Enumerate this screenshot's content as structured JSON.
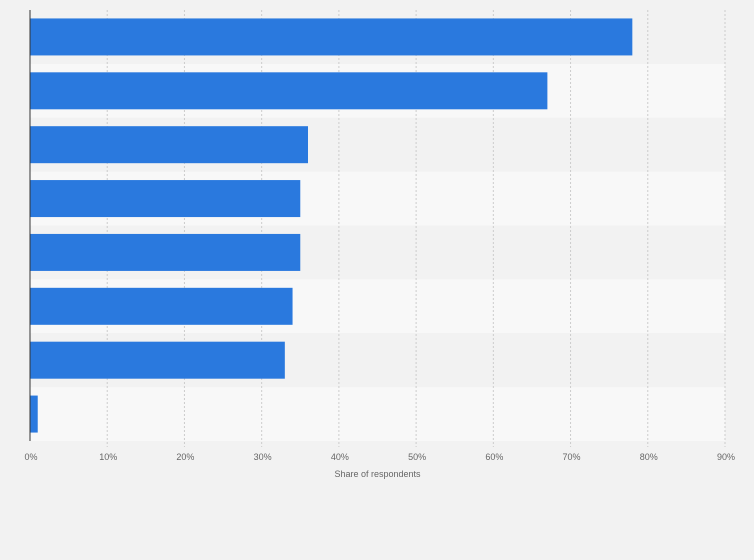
{
  "chart_data": {
    "type": "bar",
    "orientation": "horizontal",
    "categories": [
      "",
      "",
      "",
      "",
      "",
      "",
      "",
      ""
    ],
    "values": [
      78,
      67,
      36,
      35,
      35,
      34,
      33,
      1
    ],
    "xlabel": "Share of respondents",
    "ylabel": "",
    "xlim": [
      0,
      90
    ],
    "xticks": [
      0,
      10,
      20,
      30,
      40,
      50,
      60,
      70,
      80,
      90
    ],
    "xtick_labels": [
      "0%",
      "10%",
      "20%",
      "30%",
      "40%",
      "50%",
      "60%",
      "70%",
      "80%",
      "90%"
    ],
    "grid": "vertical dashed",
    "legend": "none",
    "colors": {
      "bar": "#2a79de",
      "band_dark": "#f2f2f2",
      "band_light": "#f8f8f8",
      "grid": "#cccccc",
      "axis": "#333333",
      "text": "#666666"
    }
  }
}
